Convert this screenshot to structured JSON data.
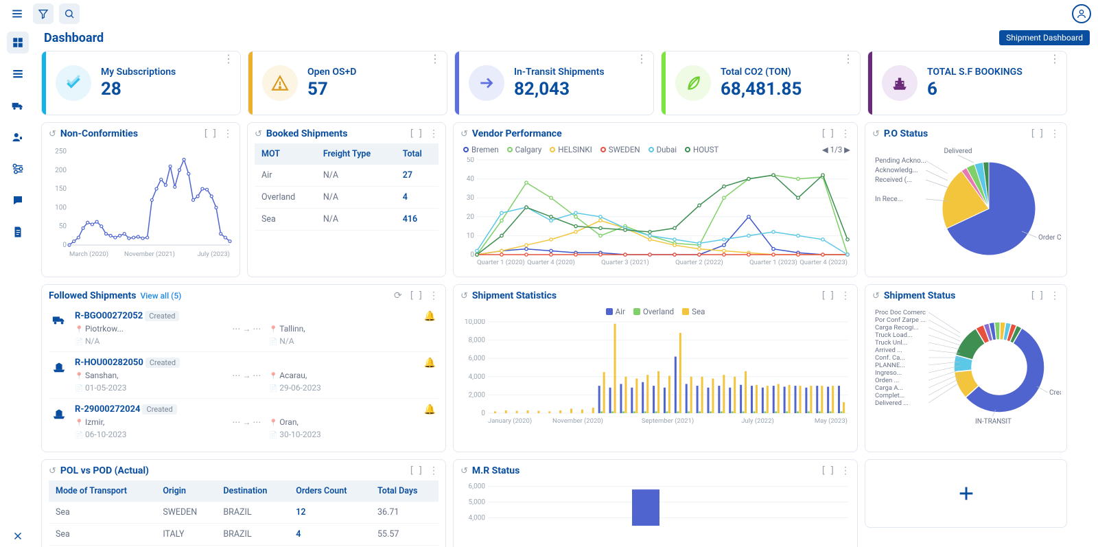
{
  "header": {
    "page_title": "Dashboard",
    "badge": "Shipment Dashboard"
  },
  "kpi": [
    {
      "accent": "#10b4e6",
      "icon_bg": "#e6f6fc",
      "icon_color": "#33c0eb",
      "icon": "check",
      "title": "My Subscriptions",
      "value": "28"
    },
    {
      "accent": "#ecb02e",
      "icon_bg": "#fdf5e3",
      "icon_color": "#d89a1e",
      "icon": "warn",
      "title": "Open OS+D",
      "value": "57"
    },
    {
      "accent": "#5d6fe0",
      "icon_bg": "#e9ecfb",
      "icon_color": "#5d6fe0",
      "icon": "arrow",
      "title": "In-Transit Shipments",
      "value": "82,043"
    },
    {
      "accent": "#7ee33c",
      "icon_bg": "#f0fbe6",
      "icon_color": "#6ccf2e",
      "icon": "leaf",
      "title": "Total CO2 (TON)",
      "value": "68,481.85"
    },
    {
      "accent": "#6a2a7a",
      "icon_bg": "#f1e6f5",
      "icon_color": "#6a2a7a",
      "icon": "ship",
      "title": "TOTAL S.F BOOKINGS",
      "value": "6"
    }
  ],
  "nonconf": {
    "title": "Non-Conformities",
    "yticks": [
      0,
      50,
      100,
      150,
      200,
      250
    ],
    "xticks": [
      "March (2020)",
      "November (2021)",
      "July (2023)"
    ],
    "color": "#4f64ce",
    "points": [
      0,
      10,
      20,
      45,
      60,
      55,
      62,
      50,
      30,
      25,
      20,
      25,
      30,
      18,
      20,
      22,
      18,
      20,
      120,
      150,
      175,
      160,
      210,
      155,
      200,
      228,
      190,
      120,
      130,
      150,
      148,
      130,
      100,
      30,
      20,
      10
    ]
  },
  "booked": {
    "title": "Booked Shipments",
    "columns": [
      "MOT",
      "Freight Type",
      "Total"
    ],
    "rows": [
      [
        "Air",
        "N/A",
        "27"
      ],
      [
        "Overland",
        "N/A",
        "4"
      ],
      [
        "Sea",
        "N/A",
        "416"
      ]
    ]
  },
  "vendor": {
    "title": "Vendor Performance",
    "pager": "1/3",
    "yticks": [
      0,
      10,
      20,
      30,
      40,
      50
    ],
    "xticks": [
      "Quarter 1 (2020)",
      "Quarter 4 (2020)",
      "Quarter 3 (2021)",
      "Quarter 2 (2022)",
      "Quarter 1 (2023)",
      "Quarter 4 (2023)"
    ],
    "series": [
      {
        "name": "Bremen",
        "color": "#3a55c9",
        "data": [
          0,
          2,
          3,
          2,
          1,
          1,
          0,
          0,
          0,
          0,
          5,
          20,
          3,
          1,
          0,
          0
        ]
      },
      {
        "name": "Calgary",
        "color": "#7fd068",
        "data": [
          0,
          18,
          38,
          30,
          20,
          10,
          15,
          10,
          6,
          5,
          30,
          40,
          42,
          40,
          41,
          0
        ]
      },
      {
        "name": "HELSINKI",
        "color": "#f2c53c",
        "data": [
          0,
          2,
          5,
          8,
          12,
          18,
          14,
          8,
          5,
          3,
          2,
          1,
          0,
          0,
          0,
          0
        ]
      },
      {
        "name": "SWEDEN",
        "color": "#e6503c",
        "data": [
          0,
          0,
          0,
          0,
          0,
          0,
          0,
          0,
          0,
          0,
          0,
          0,
          0,
          0,
          0,
          0
        ]
      },
      {
        "name": "Dubai",
        "color": "#5ac8e6",
        "data": [
          2,
          22,
          25,
          18,
          22,
          20,
          14,
          10,
          8,
          6,
          8,
          10,
          12,
          10,
          8,
          0
        ]
      },
      {
        "name": "HOUST",
        "color": "#3f8f53",
        "data": [
          0,
          10,
          25,
          20,
          15,
          14,
          13,
          12,
          14,
          26,
          36,
          40,
          42,
          30,
          42,
          8
        ]
      }
    ]
  },
  "po": {
    "title": "P.O Status",
    "labels_left": [
      "Pending Ackno...",
      "Acknowledg...",
      "Received (...",
      "",
      "In Rece..."
    ],
    "label_right": "Order Creat...",
    "label_top": "Delivered",
    "slices": [
      {
        "color": "#4f64ce",
        "value": 68
      },
      {
        "color": "#f2c53c",
        "value": 22
      },
      {
        "color": "#e67ab0",
        "value": 2
      },
      {
        "color": "#7fd068",
        "value": 3
      },
      {
        "color": "#5ac8e6",
        "value": 3
      },
      {
        "color": "#3f8f53",
        "value": 2
      }
    ]
  },
  "followed": {
    "title": "Followed Shipments",
    "view_all": "View all (5)",
    "rows": [
      {
        "icon": "truck",
        "id": "R-BGO00272052",
        "status": "Created",
        "from": "Piotrkow...",
        "from_sub": "N/A",
        "to": "Tallinn,",
        "to_sub": "N/A"
      },
      {
        "icon": "ship",
        "id": "R-HOU00282050",
        "status": "Created",
        "from": "Sanshan,",
        "from_sub": "01-05-2023",
        "to": "Acarau,",
        "to_sub": "29-06-2023"
      },
      {
        "icon": "ship",
        "id": "R-29000272024",
        "status": "Created",
        "from": "Izmir,",
        "from_sub": "06-10-2023",
        "to": "Oran,",
        "to_sub": "30-10-2023"
      }
    ]
  },
  "stats": {
    "title": "Shipment Statistics",
    "legend": [
      {
        "name": "Air",
        "color": "#4f64ce"
      },
      {
        "name": "Overland",
        "color": "#7fd068"
      },
      {
        "name": "Sea",
        "color": "#f2c53c"
      }
    ],
    "yticks": [
      0,
      2000,
      4000,
      6000,
      8000,
      10000
    ],
    "ylabels": [
      "0",
      "2,000",
      "4,000",
      "6,000",
      "8,000",
      "10,000"
    ],
    "xticks": [
      "January (2020)",
      "November (2020)",
      "September (2021)",
      "July (2022)",
      "May (2023)"
    ],
    "bars": [
      [
        0,
        0,
        200
      ],
      [
        0,
        0,
        300
      ],
      [
        0,
        0,
        250
      ],
      [
        0,
        0,
        300
      ],
      [
        0,
        0,
        250
      ],
      [
        0,
        0,
        200
      ],
      [
        0,
        0,
        300
      ],
      [
        0,
        0,
        500
      ],
      [
        0,
        0,
        400
      ],
      [
        0,
        0,
        600
      ],
      [
        3000,
        200,
        4500
      ],
      [
        2800,
        200,
        9800
      ],
      [
        3200,
        200,
        4000
      ],
      [
        2800,
        200,
        3800
      ],
      [
        3400,
        200,
        4200
      ],
      [
        3000,
        200,
        4600
      ],
      [
        2800,
        200,
        4100
      ],
      [
        6200,
        200,
        8800
      ],
      [
        3200,
        200,
        4000
      ],
      [
        3000,
        200,
        4000
      ],
      [
        2800,
        200,
        3800
      ],
      [
        3000,
        200,
        4200
      ],
      [
        2800,
        200,
        4000
      ],
      [
        3100,
        200,
        4600
      ],
      [
        3000,
        200,
        3100
      ],
      [
        2800,
        200,
        3000
      ],
      [
        3000,
        200,
        3200
      ],
      [
        2900,
        200,
        3100
      ],
      [
        3000,
        200,
        3000
      ],
      [
        2800,
        200,
        3000
      ],
      [
        3000,
        200,
        3000
      ],
      [
        2900,
        200,
        3000
      ],
      [
        3000,
        200,
        1200
      ]
    ]
  },
  "shipstatus": {
    "title": "Shipment Status",
    "label_right": "Created",
    "label_bottom": "IN-TRANSIT",
    "labels_left": [
      "Proc Doc Comerc",
      "Por Conf Zarpe ...",
      "Carga Recogi...",
      "Truck Load...",
      "Truck Unl...",
      "Arrived ...",
      "Conf. Ca...",
      "PLANNE...",
      "Ingreso...",
      "Orden ...",
      "Carga A...",
      "Complet...",
      "Delivered ..."
    ],
    "slices": [
      {
        "color": "#4f64ce",
        "value": 55
      },
      {
        "color": "#f2c53c",
        "value": 10
      },
      {
        "color": "#5ac8e6",
        "value": 6
      },
      {
        "color": "#3f8f53",
        "value": 12
      },
      {
        "color": "#e6503c",
        "value": 3
      },
      {
        "color": "#8a6fd1",
        "value": 2
      },
      {
        "color": "#4f64ce",
        "value": 2
      },
      {
        "color": "#7fd068",
        "value": 2
      },
      {
        "color": "#f2c53c",
        "value": 2
      },
      {
        "color": "#5ac8e6",
        "value": 2
      },
      {
        "color": "#e6503c",
        "value": 2
      },
      {
        "color": "#3f8f53",
        "value": 2
      }
    ]
  },
  "polpod": {
    "title": "POL vs POD (Actual)",
    "columns": [
      "Mode of Transport",
      "Origin",
      "Destination",
      "Orders Count",
      "Total Days"
    ],
    "rows": [
      [
        "Sea",
        "SWEDEN",
        "BRAZIL",
        "12",
        "36.71"
      ],
      [
        "Sea",
        "ITALY",
        "BRAZIL",
        "4",
        "55.57"
      ]
    ]
  },
  "mr": {
    "title": "M.R Status",
    "yticks": [
      4000,
      5000,
      6000
    ],
    "ylabels": [
      "4,000",
      "5,000",
      "6,000"
    ],
    "bar_value": 5800,
    "bar_color": "#4f64ce"
  }
}
